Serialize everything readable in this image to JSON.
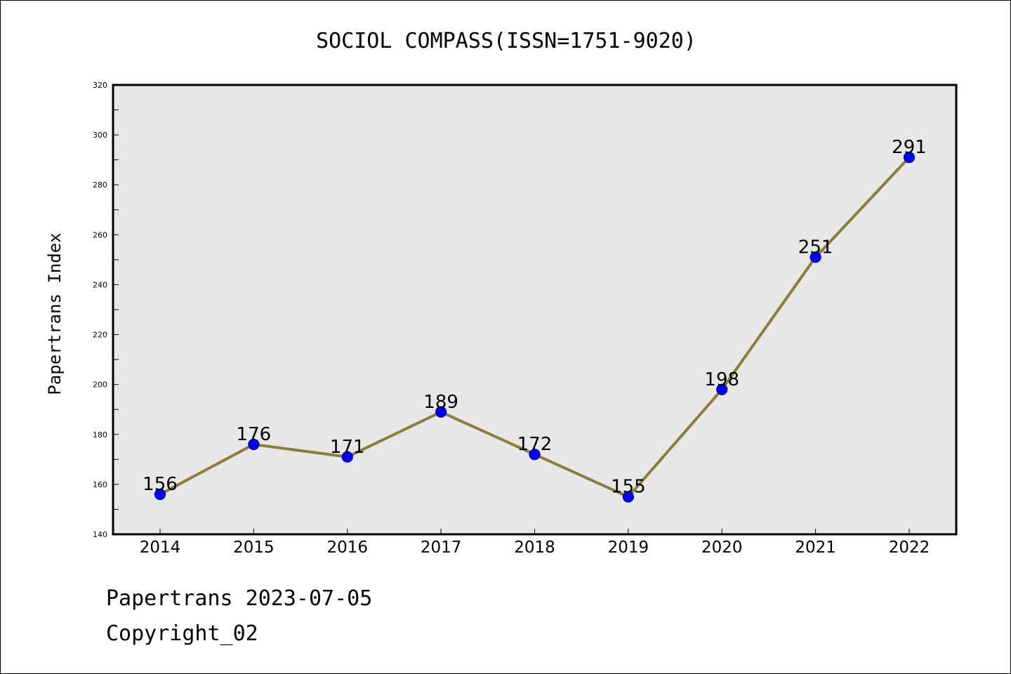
{
  "colors": {
    "background": "#ffffff",
    "plot_background": "#e7e7e7",
    "line": "#8b7d3a",
    "marker": "#0000ff",
    "marker_edge": "#00008b",
    "axes": "#000000"
  },
  "chart_data": {
    "type": "line",
    "title": "SOCIOL COMPASS(ISSN=1751-9020)",
    "xlabel": "",
    "ylabel": "Papertrans Index",
    "categories": [
      "2014",
      "2015",
      "2016",
      "2017",
      "2018",
      "2019",
      "2020",
      "2021",
      "2022"
    ],
    "series": [
      {
        "values": [
          156,
          176,
          171,
          189,
          172,
          155,
          198,
          251,
          291
        ]
      }
    ],
    "data_labels": [
      "156",
      "176",
      "171",
      "189",
      "172",
      "155",
      "198",
      "251",
      "291"
    ],
    "ylim": [
      140,
      320
    ],
    "yticks": [
      140,
      160,
      180,
      200,
      220,
      240,
      260,
      280,
      300,
      320
    ],
    "y_minor_step": 10,
    "grid": false,
    "legend": "none"
  },
  "footer": {
    "line1": "Papertrans 2023-07-05",
    "line2": "Copyright_02"
  }
}
